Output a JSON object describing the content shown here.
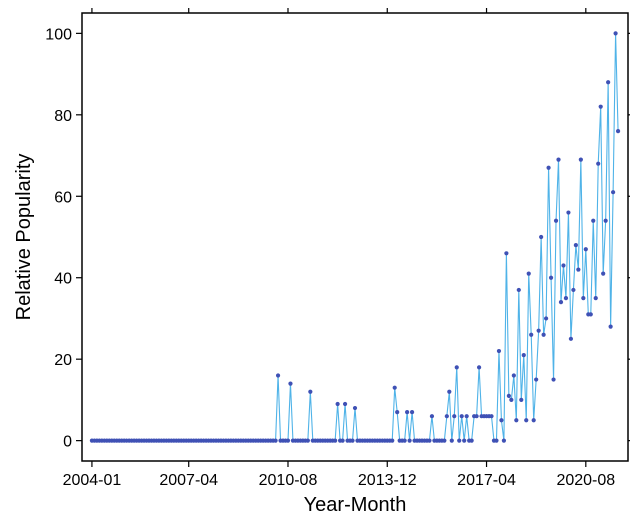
{
  "chart_data": {
    "type": "line",
    "xlabel": "Year-Month",
    "ylabel": "Relative Popularity",
    "title": "",
    "x_tick_labels": [
      "2004-01",
      "2007-04",
      "2010-08",
      "2013-12",
      "2017-04",
      "2020-08"
    ],
    "y_tick_labels": [
      "0",
      "20",
      "40",
      "60",
      "80",
      "100"
    ],
    "x_tick_months": [
      0,
      39,
      79,
      119,
      159,
      199
    ],
    "x_start": "2004-01",
    "x_end": "2021-09",
    "ylim": [
      -5,
      105
    ],
    "y_ticks": [
      0,
      20,
      40,
      60,
      80,
      100
    ],
    "grid": false,
    "legend": "none",
    "colors": {
      "line": "#4fb3e8",
      "marker": "#3f51b5",
      "axis": "#000000"
    },
    "series": [
      {
        "points": [
          [
            "2004-01",
            0
          ],
          [
            "2004-02",
            0
          ],
          [
            "2004-03",
            0
          ],
          [
            "2004-04",
            0
          ],
          [
            "2004-05",
            0
          ],
          [
            "2004-06",
            0
          ],
          [
            "2004-07",
            0
          ],
          [
            "2004-08",
            0
          ],
          [
            "2004-09",
            0
          ],
          [
            "2004-10",
            0
          ],
          [
            "2004-11",
            0
          ],
          [
            "2004-12",
            0
          ],
          [
            "2005-01",
            0
          ],
          [
            "2005-02",
            0
          ],
          [
            "2005-03",
            0
          ],
          [
            "2005-04",
            0
          ],
          [
            "2005-05",
            0
          ],
          [
            "2005-06",
            0
          ],
          [
            "2005-07",
            0
          ],
          [
            "2005-08",
            0
          ],
          [
            "2005-09",
            0
          ],
          [
            "2005-10",
            0
          ],
          [
            "2005-11",
            0
          ],
          [
            "2005-12",
            0
          ],
          [
            "2006-01",
            0
          ],
          [
            "2006-02",
            0
          ],
          [
            "2006-03",
            0
          ],
          [
            "2006-04",
            0
          ],
          [
            "2006-05",
            0
          ],
          [
            "2006-06",
            0
          ],
          [
            "2006-07",
            0
          ],
          [
            "2006-08",
            0
          ],
          [
            "2006-09",
            0
          ],
          [
            "2006-10",
            0
          ],
          [
            "2006-11",
            0
          ],
          [
            "2006-12",
            0
          ],
          [
            "2007-01",
            0
          ],
          [
            "2007-02",
            0
          ],
          [
            "2007-03",
            0
          ],
          [
            "2007-04",
            0
          ],
          [
            "2007-05",
            0
          ],
          [
            "2007-06",
            0
          ],
          [
            "2007-07",
            0
          ],
          [
            "2007-08",
            0
          ],
          [
            "2007-09",
            0
          ],
          [
            "2007-10",
            0
          ],
          [
            "2007-11",
            0
          ],
          [
            "2007-12",
            0
          ],
          [
            "2008-01",
            0
          ],
          [
            "2008-02",
            0
          ],
          [
            "2008-03",
            0
          ],
          [
            "2008-04",
            0
          ],
          [
            "2008-05",
            0
          ],
          [
            "2008-06",
            0
          ],
          [
            "2008-07",
            0
          ],
          [
            "2008-08",
            0
          ],
          [
            "2008-09",
            0
          ],
          [
            "2008-10",
            0
          ],
          [
            "2008-11",
            0
          ],
          [
            "2008-12",
            0
          ],
          [
            "2009-01",
            0
          ],
          [
            "2009-02",
            0
          ],
          [
            "2009-03",
            0
          ],
          [
            "2009-04",
            0
          ],
          [
            "2009-05",
            0
          ],
          [
            "2009-06",
            0
          ],
          [
            "2009-07",
            0
          ],
          [
            "2009-08",
            0
          ],
          [
            "2009-09",
            0
          ],
          [
            "2009-10",
            0
          ],
          [
            "2009-11",
            0
          ],
          [
            "2009-12",
            0
          ],
          [
            "2010-01",
            0
          ],
          [
            "2010-02",
            0
          ],
          [
            "2010-03",
            0
          ],
          [
            "2010-04",
            16
          ],
          [
            "2010-05",
            0
          ],
          [
            "2010-06",
            0
          ],
          [
            "2010-07",
            0
          ],
          [
            "2010-08",
            0
          ],
          [
            "2010-09",
            14
          ],
          [
            "2010-10",
            0
          ],
          [
            "2010-11",
            0
          ],
          [
            "2010-12",
            0
          ],
          [
            "2011-01",
            0
          ],
          [
            "2011-02",
            0
          ],
          [
            "2011-03",
            0
          ],
          [
            "2011-04",
            0
          ],
          [
            "2011-05",
            12
          ],
          [
            "2011-06",
            0
          ],
          [
            "2011-07",
            0
          ],
          [
            "2011-08",
            0
          ],
          [
            "2011-09",
            0
          ],
          [
            "2011-10",
            0
          ],
          [
            "2011-11",
            0
          ],
          [
            "2011-12",
            0
          ],
          [
            "2012-01",
            0
          ],
          [
            "2012-02",
            0
          ],
          [
            "2012-03",
            0
          ],
          [
            "2012-04",
            9
          ],
          [
            "2012-05",
            0
          ],
          [
            "2012-06",
            0
          ],
          [
            "2012-07",
            9
          ],
          [
            "2012-08",
            0
          ],
          [
            "2012-09",
            0
          ],
          [
            "2012-10",
            0
          ],
          [
            "2012-11",
            8
          ],
          [
            "2012-12",
            0
          ],
          [
            "2013-01",
            0
          ],
          [
            "2013-02",
            0
          ],
          [
            "2013-03",
            0
          ],
          [
            "2013-04",
            0
          ],
          [
            "2013-05",
            0
          ],
          [
            "2013-06",
            0
          ],
          [
            "2013-07",
            0
          ],
          [
            "2013-08",
            0
          ],
          [
            "2013-09",
            0
          ],
          [
            "2013-10",
            0
          ],
          [
            "2013-11",
            0
          ],
          [
            "2013-12",
            0
          ],
          [
            "2014-01",
            0
          ],
          [
            "2014-02",
            0
          ],
          [
            "2014-03",
            13
          ],
          [
            "2014-04",
            7
          ],
          [
            "2014-05",
            0
          ],
          [
            "2014-06",
            0
          ],
          [
            "2014-07",
            0
          ],
          [
            "2014-08",
            7
          ],
          [
            "2014-09",
            0
          ],
          [
            "2014-10",
            7
          ],
          [
            "2014-11",
            0
          ],
          [
            "2014-12",
            0
          ],
          [
            "2015-01",
            0
          ],
          [
            "2015-02",
            0
          ],
          [
            "2015-03",
            0
          ],
          [
            "2015-04",
            0
          ],
          [
            "2015-05",
            0
          ],
          [
            "2015-06",
            6
          ],
          [
            "2015-07",
            0
          ],
          [
            "2015-08",
            0
          ],
          [
            "2015-09",
            0
          ],
          [
            "2015-10",
            0
          ],
          [
            "2015-11",
            0
          ],
          [
            "2015-12",
            6
          ],
          [
            "2016-01",
            12
          ],
          [
            "2016-02",
            0
          ],
          [
            "2016-03",
            6
          ],
          [
            "2016-04",
            18
          ],
          [
            "2016-05",
            0
          ],
          [
            "2016-06",
            6
          ],
          [
            "2016-07",
            0
          ],
          [
            "2016-08",
            6
          ],
          [
            "2016-09",
            0
          ],
          [
            "2016-10",
            0
          ],
          [
            "2016-11",
            6
          ],
          [
            "2016-12",
            6
          ],
          [
            "2017-01",
            18
          ],
          [
            "2017-02",
            6
          ],
          [
            "2017-03",
            6
          ],
          [
            "2017-04",
            6
          ],
          [
            "2017-05",
            6
          ],
          [
            "2017-06",
            6
          ],
          [
            "2017-07",
            0
          ],
          [
            "2017-08",
            0
          ],
          [
            "2017-09",
            22
          ],
          [
            "2017-10",
            5
          ],
          [
            "2017-11",
            0
          ],
          [
            "2017-12",
            46
          ],
          [
            "2018-01",
            11
          ],
          [
            "2018-02",
            10
          ],
          [
            "2018-03",
            16
          ],
          [
            "2018-04",
            5
          ],
          [
            "2018-05",
            37
          ],
          [
            "2018-06",
            10
          ],
          [
            "2018-07",
            21
          ],
          [
            "2018-08",
            5
          ],
          [
            "2018-09",
            41
          ],
          [
            "2018-10",
            26
          ],
          [
            "2018-11",
            5
          ],
          [
            "2018-12",
            15
          ],
          [
            "2019-01",
            27
          ],
          [
            "2019-02",
            50
          ],
          [
            "2019-03",
            26
          ],
          [
            "2019-04",
            30
          ],
          [
            "2019-05",
            67
          ],
          [
            "2019-06",
            40
          ],
          [
            "2019-07",
            15
          ],
          [
            "2019-08",
            54
          ],
          [
            "2019-09",
            69
          ],
          [
            "2019-10",
            34
          ],
          [
            "2019-11",
            43
          ],
          [
            "2019-12",
            35
          ],
          [
            "2020-01",
            56
          ],
          [
            "2020-02",
            25
          ],
          [
            "2020-03",
            37
          ],
          [
            "2020-04",
            48
          ],
          [
            "2020-05",
            42
          ],
          [
            "2020-06",
            69
          ],
          [
            "2020-07",
            35
          ],
          [
            "2020-08",
            47
          ],
          [
            "2020-09",
            31
          ],
          [
            "2020-10",
            31
          ],
          [
            "2020-11",
            54
          ],
          [
            "2020-12",
            35
          ],
          [
            "2021-01",
            68
          ],
          [
            "2021-02",
            82
          ],
          [
            "2021-03",
            41
          ],
          [
            "2021-04",
            54
          ],
          [
            "2021-05",
            88
          ],
          [
            "2021-06",
            28
          ],
          [
            "2021-07",
            61
          ],
          [
            "2021-08",
            100
          ],
          [
            "2021-09",
            76
          ]
        ]
      }
    ]
  }
}
